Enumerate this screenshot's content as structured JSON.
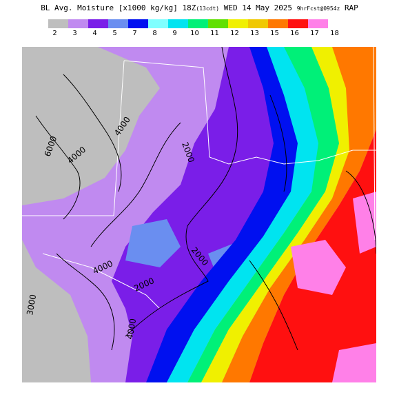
{
  "header": {
    "title_main": "BL Avg. Moisture [x1000 kg/kg]",
    "title_cycle": "18Z",
    "title_cdt": "(13cdt)",
    "title_date": "WED 14 May 2025",
    "title_fcst": "9hrFcst@0954z",
    "title_model": "RAP"
  },
  "legend": {
    "labels": [
      "2",
      "3",
      "4",
      "5",
      "7",
      "8",
      "9",
      "10",
      "11",
      "12",
      "13",
      "15",
      "16",
      "17",
      "18"
    ],
    "colors": [
      "#bebebe",
      "#c08af0",
      "#7a1ee8",
      "#6a8ef0",
      "#0010f0",
      "#80ffff",
      "#00e4f0",
      "#00f078",
      "#60e000",
      "#f0f000",
      "#f0c800",
      "#ff7800",
      "#ff1010",
      "#ff80e8"
    ]
  },
  "map": {
    "contour_labels": [
      {
        "text": "6000"
      },
      {
        "text": "4000"
      },
      {
        "text": "4000"
      },
      {
        "text": "2000"
      },
      {
        "text": "2000"
      },
      {
        "text": "4000"
      },
      {
        "text": "2000"
      },
      {
        "text": "4000"
      },
      {
        "text": "3000"
      }
    ]
  }
}
